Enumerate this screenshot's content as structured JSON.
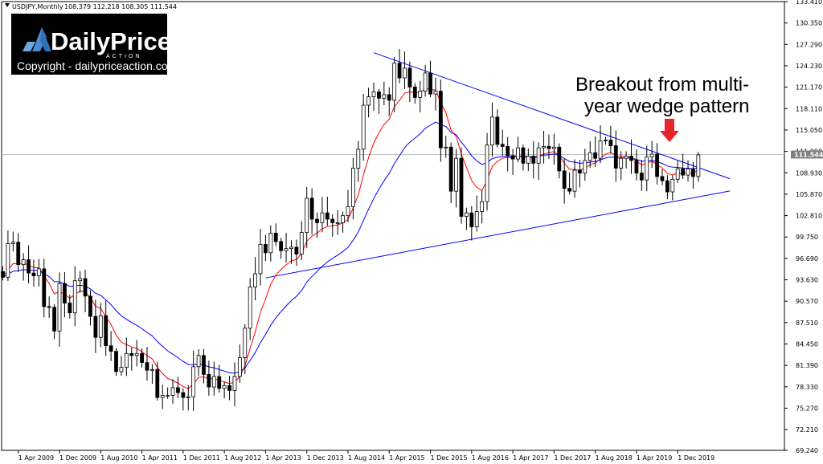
{
  "header": {
    "symbol_label": "USDJPY,Monthly",
    "ohlc_text": "108.379 112.218 108.305 111.544"
  },
  "logo": {
    "brand": "DailyPrice",
    "sub": "ACTION",
    "copyright": "Copyright - dailypriceaction.com"
  },
  "annotation": {
    "line1": "Breakout from multi-",
    "line2": "year wedge pattern"
  },
  "colors": {
    "bull": "#ffffff",
    "bear": "#000000",
    "ema_fast": "#ff0000",
    "ema_slow": "#0000ff",
    "trendline": "#0000ff",
    "arrow": "#e8252d",
    "badge": "#808080",
    "logo_bg": "#000000"
  },
  "chart_data": {
    "type": "candlestick",
    "symbol": "USDJPY",
    "timeframe": "Monthly",
    "current_price": 111.544,
    "ylim": [
      69.24,
      133.41
    ],
    "y_ticks": [
      "133.410",
      "130.350",
      "127.290",
      "124.230",
      "121.170",
      "118.110",
      "115.050",
      "111.990",
      "108.930",
      "105.870",
      "102.810",
      "99.750",
      "96.690",
      "93.630",
      "90.570",
      "87.510",
      "84.450",
      "81.390",
      "78.330",
      "75.270",
      "72.210",
      "69.240"
    ],
    "x_ticks": [
      "1 Apr 2009",
      "1 Dec 2009",
      "1 Aug 2010",
      "1 Apr 2011",
      "1 Dec 2011",
      "1 Aug 2012",
      "1 Apr 2013",
      "1 Dec 2013",
      "1 Aug 2014",
      "1 Apr 2015",
      "1 Dec 2015",
      "1 Aug 2016",
      "1 Apr 2017",
      "1 Dec 2017",
      "1 Aug 2018",
      "1 Apr 2019",
      "1 Dec 2019"
    ],
    "x_tick_start_month_index": 3,
    "x_tick_step_months": 8,
    "first_bar_month_index": 0,
    "closes": [
      94,
      98.8,
      99,
      95.8,
      96.5,
      94.6,
      94.2,
      95.2,
      89.8,
      89.7,
      86.3,
      93.1,
      90.3,
      88.9,
      93.5,
      93.8,
      91.3,
      88.4,
      85.4,
      88.5,
      84.2,
      83.4,
      80.5,
      81.1,
      83.1,
      82.8,
      83.1,
      81.8,
      80.7,
      80.8,
      76.8,
      77.1,
      77.1,
      78.2,
      77.5,
      76.8,
      76.9,
      81.2,
      82.8,
      80.1,
      78.3,
      79.8,
      78.1,
      78.5,
      77.8,
      79.8,
      82.5,
      86.7,
      92.6,
      94.5,
      98.7,
      97.5,
      100.3,
      99.1,
      97.8,
      98.1,
      98.3,
      97.3,
      100.4,
      105.3,
      102.3,
      101.8,
      103.2,
      102.3,
      101.8,
      101.8,
      102.8,
      104.1,
      109.6,
      112.3,
      118.6,
      119.8,
      120.5,
      119.6,
      120.1,
      119.3,
      124.6,
      122.5,
      123.9,
      121.2,
      119.7,
      120.6,
      123.2,
      120.2,
      120.6,
      112.5,
      112.6,
      106.3,
      111.0,
      102.7,
      103.2,
      101.2,
      103.4,
      104.8,
      112.9,
      116.9,
      113.0,
      112.7,
      111.4,
      110.9,
      112.5,
      110.3,
      111.3,
      110.3,
      112.5,
      112.7,
      112.4,
      112.6,
      109.2,
      106.7,
      106.3,
      109.3,
      108.9,
      110.7,
      111.8,
      111.0,
      113.5,
      113.6,
      112.8,
      109.6,
      111.0,
      111.3,
      110.7,
      108.9,
      107.9,
      111.2,
      111.6,
      108.4,
      107.8,
      106.2,
      108.0,
      109.5,
      108.6,
      109.5,
      108.4,
      111.5
    ],
    "series": [
      {
        "name": "EMA fast",
        "color_key": "ema_fast"
      },
      {
        "name": "EMA slow",
        "color_key": "ema_slow"
      }
    ],
    "trendlines": [
      {
        "x1": 72,
        "y1": 126.1,
        "x2": 138,
        "y2": 108.9
      },
      {
        "x1": 51,
        "y1": 93.9,
        "x2": 138,
        "y2": 105.9
      }
    ],
    "price_line": 111.544
  }
}
